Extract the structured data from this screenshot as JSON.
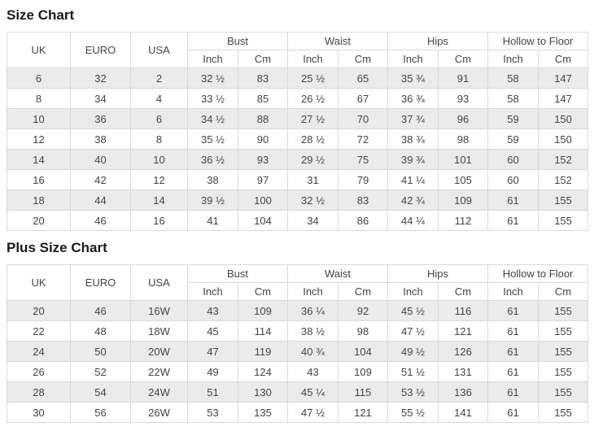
{
  "colors": {
    "stripe_row": "#ebebeb",
    "table_border": "#d9d9d9",
    "body_text": "#444444",
    "title_text": "#1a1a1a",
    "background": "#ffffff"
  },
  "size_chart": {
    "title": "Size Chart",
    "header": {
      "uk": "UK",
      "euro": "EURO",
      "usa": "USA",
      "bust": "Bust",
      "waist": "Waist",
      "hips": "Hips",
      "hollow_to_floor": "Hollow to Floor",
      "inch": "Inch",
      "cm": "Cm"
    },
    "rows": [
      [
        "6",
        "32",
        "2",
        "32 ½",
        "83",
        "25 ½",
        "65",
        "35 ¾",
        "91",
        "58",
        "147"
      ],
      [
        "8",
        "34",
        "4",
        "33 ½",
        "85",
        "26 ½",
        "67",
        "36 ¾",
        "93",
        "58",
        "147"
      ],
      [
        "10",
        "36",
        "6",
        "34 ½",
        "88",
        "27 ½",
        "70",
        "37 ¾",
        "96",
        "59",
        "150"
      ],
      [
        "12",
        "38",
        "8",
        "35 ½",
        "90",
        "28 ½",
        "72",
        "38 ¾",
        "98",
        "59",
        "150"
      ],
      [
        "14",
        "40",
        "10",
        "36 ½",
        "93",
        "29 ½",
        "75",
        "39 ¾",
        "101",
        "60",
        "152"
      ],
      [
        "16",
        "42",
        "12",
        "38",
        "97",
        "31",
        "79",
        "41 ¼",
        "105",
        "60",
        "152"
      ],
      [
        "18",
        "44",
        "14",
        "39 ½",
        "100",
        "32 ½",
        "83",
        "42 ¾",
        "109",
        "61",
        "155"
      ],
      [
        "20",
        "46",
        "16",
        "41",
        "104",
        "34",
        "86",
        "44 ¼",
        "112",
        "61",
        "155"
      ]
    ]
  },
  "plus_size_chart": {
    "title": "Plus Size Chart",
    "header": {
      "uk": "UK",
      "euro": "EURO",
      "usa": "USA",
      "bust": "Bust",
      "waist": "Waist",
      "hips": "Hips",
      "hollow_to_floor": "Hollow to Floor",
      "inch": "Inch",
      "cm": "Cm"
    },
    "rows": [
      [
        "20",
        "46",
        "16W",
        "43",
        "109",
        "36 ¼",
        "92",
        "45 ½",
        "116",
        "61",
        "155"
      ],
      [
        "22",
        "48",
        "18W",
        "45",
        "114",
        "38 ½",
        "98",
        "47 ½",
        "121",
        "61",
        "155"
      ],
      [
        "24",
        "50",
        "20W",
        "47",
        "119",
        "40 ¾",
        "104",
        "49 ½",
        "126",
        "61",
        "155"
      ],
      [
        "26",
        "52",
        "22W",
        "49",
        "124",
        "43",
        "109",
        "51 ½",
        "131",
        "61",
        "155"
      ],
      [
        "28",
        "54",
        "24W",
        "51",
        "130",
        "45 ¼",
        "115",
        "53 ½",
        "136",
        "61",
        "155"
      ],
      [
        "30",
        "56",
        "26W",
        "53",
        "135",
        "47 ½",
        "121",
        "55 ½",
        "141",
        "61",
        "155"
      ]
    ]
  }
}
